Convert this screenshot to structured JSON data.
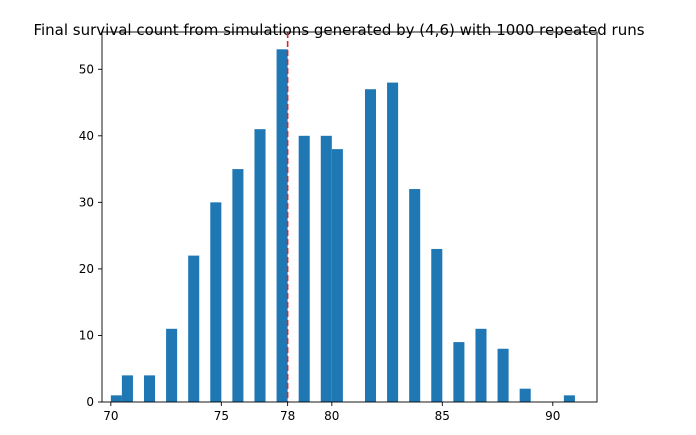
{
  "chart_data": {
    "type": "bar",
    "title": "Final survival count from simulations generated by (4,6) with 1000 repeated runs",
    "xlabel": "",
    "ylabel": "",
    "x": [
      70,
      70.5,
      71.5,
      72.5,
      73.5,
      74.5,
      75.5,
      76.5,
      77.5,
      78.5,
      79.5,
      80,
      81.5,
      82.5,
      83.5,
      84.5,
      85.5,
      86.5,
      87.5,
      88.5,
      89.5,
      90.5
    ],
    "values": [
      1,
      4,
      4,
      11,
      22,
      30,
      35,
      41,
      53,
      40,
      40,
      38,
      47,
      48,
      32,
      23,
      9,
      11,
      8,
      2,
      0,
      1
    ],
    "bin_width": 0.5,
    "xlim": [
      69.6,
      92
    ],
    "ylim": [
      0,
      55.6
    ],
    "xticks": [
      70,
      75,
      78,
      80,
      85,
      90
    ],
    "yticks": [
      0,
      10,
      20,
      30,
      40,
      50
    ],
    "reference_line": {
      "x": 78,
      "style": "dashed",
      "color": "#d62728"
    },
    "bar_color": "#1f77b4",
    "grid": false
  }
}
